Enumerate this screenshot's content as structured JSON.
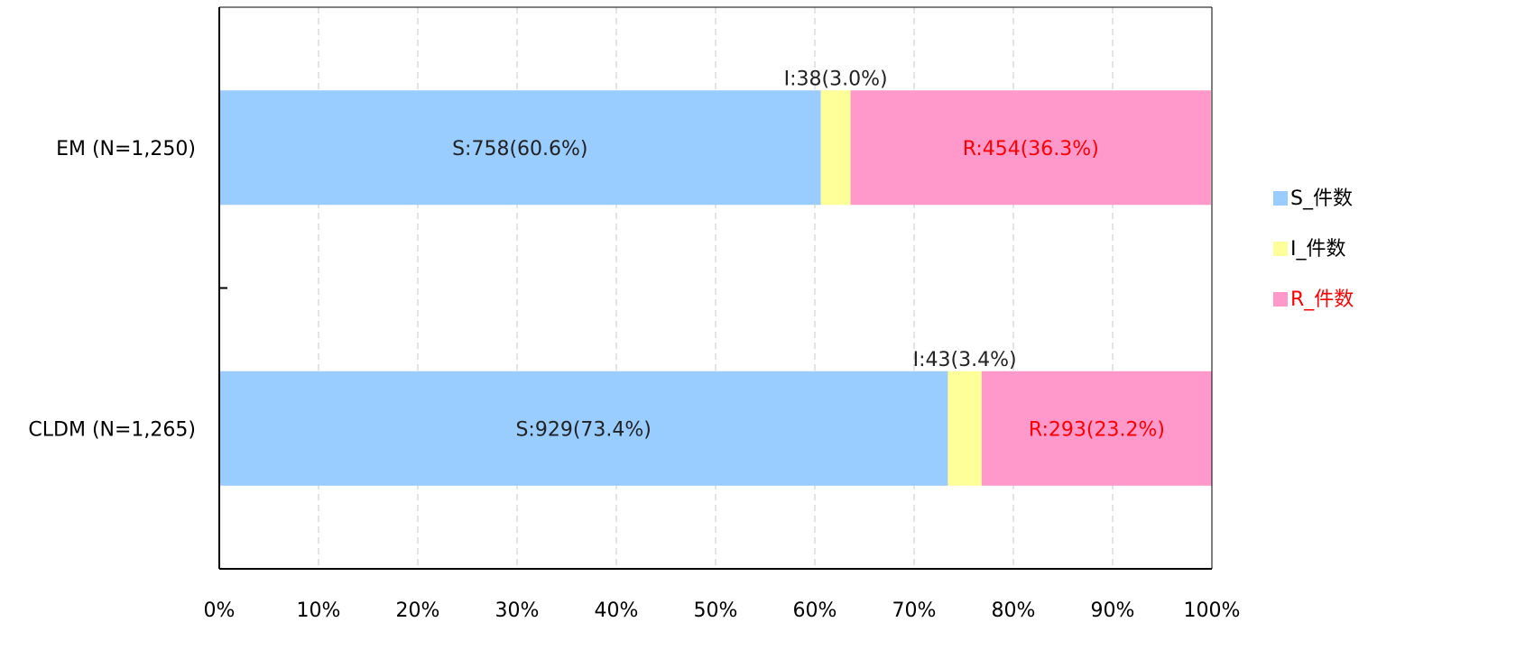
{
  "chart_data": {
    "type": "bar",
    "orientation": "horizontal",
    "stacked": true,
    "percent": true,
    "categories": [
      "EM (N=1,250)",
      "CLDM (N=1,265)"
    ],
    "series": [
      {
        "name": "S_件数",
        "color": "#99CCFF",
        "label_color": "#222222",
        "values": [
          60.6,
          73.4
        ],
        "labels": [
          "S:758(60.6%)",
          "S:929(73.4%)"
        ],
        "label_position": "center"
      },
      {
        "name": "I_件数",
        "color": "#FFFF99",
        "label_color": "#222222",
        "values": [
          3.0,
          3.4
        ],
        "labels": [
          "I:38(3.0%)",
          "I:43(3.4%)"
        ],
        "label_position": "above"
      },
      {
        "name": "R_件数",
        "color": "#FF99CC",
        "label_color": "#FF0000",
        "values": [
          36.3,
          23.2
        ],
        "labels": [
          "R:454(36.3%)",
          "R:293(23.2%)"
        ],
        "label_position": "center"
      }
    ],
    "xlim": [
      0,
      100
    ],
    "xticks": [
      "0%",
      "10%",
      "20%",
      "30%",
      "40%",
      "50%",
      "60%",
      "70%",
      "80%",
      "90%",
      "100%"
    ],
    "grid": "vertical-dashed",
    "legend": "right"
  }
}
